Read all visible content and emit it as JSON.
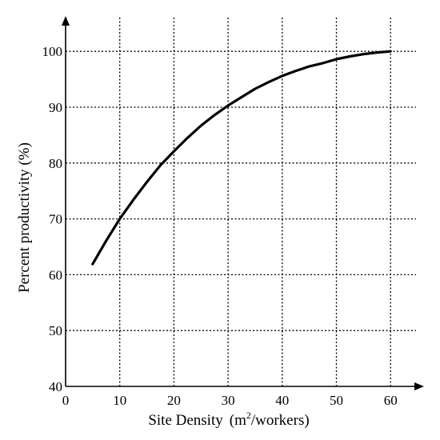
{
  "chart_data": {
    "type": "line",
    "title": "",
    "xlabel": {
      "text": "Site Density",
      "unit_prefix": "(m",
      "unit_sup": "2",
      "unit_suffix": "/workers)"
    },
    "ylabel": "Percent  productivity  (%)",
    "xlim": [
      0,
      65
    ],
    "ylim": [
      40,
      104
    ],
    "x_ticks": [
      "0",
      "10",
      "20",
      "30",
      "40",
      "50",
      "60"
    ],
    "y_ticks": [
      "40",
      "50",
      "60",
      "70",
      "80",
      "90",
      "100"
    ],
    "grid": true,
    "grid_style": "dotted",
    "legend": "none",
    "colors": {
      "line": "#000000",
      "axis": "#000000",
      "grid": "#000000"
    },
    "series": [
      {
        "x": [
          5,
          7.5,
          10,
          12.5,
          15,
          17.5,
          20,
          22.5,
          25,
          27.5,
          30,
          32.5,
          35,
          37.5,
          40,
          42.5,
          45,
          47.5,
          50,
          52.5,
          55,
          57.5,
          60
        ],
        "y": [
          61.9,
          66.1,
          70.0,
          73.4,
          76.6,
          79.6,
          82.1,
          84.5,
          86.7,
          88.6,
          90.3,
          91.8,
          93.3,
          94.5,
          95.6,
          96.5,
          97.3,
          97.9,
          98.6,
          99.1,
          99.5,
          99.8,
          100.0
        ]
      }
    ]
  }
}
